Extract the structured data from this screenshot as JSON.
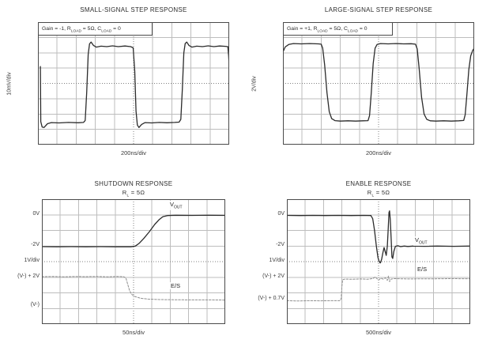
{
  "colors": {
    "trace_dark": "#2b2b2b",
    "trace_light": "#8f8f8f",
    "grid": "#bdbdbd",
    "grid_center": "#808080",
    "plot_border": "#4a4a4a",
    "text": "#333333"
  },
  "chart_data": [
    {
      "id": "small-signal-step-response",
      "type": "line",
      "title": "SMALL-SIGNAL STEP RESPONSE",
      "xlabel": "200ns/div",
      "ylabel": "10mV/div",
      "x_divisions": 10,
      "y_divisions": 8,
      "grid": true,
      "annotation": {
        "p1": "Gain = -1, R",
        "s1": "LOAD",
        "p2": " = 5Ω, C",
        "s2": "LOAD",
        "p3": " = 0"
      },
      "series": [
        {
          "name": "VOUT",
          "color_key": "trace_dark",
          "dashed": false,
          "points_div": [
            [
              0.13,
              2.9
            ],
            [
              0.15,
              6.5
            ],
            [
              0.22,
              6.85
            ],
            [
              0.32,
              6.88
            ],
            [
              0.5,
              6.63
            ],
            [
              0.7,
              6.56
            ],
            [
              1.1,
              6.58
            ],
            [
              1.6,
              6.55
            ],
            [
              2.1,
              6.57
            ],
            [
              2.38,
              6.55
            ],
            [
              2.47,
              6.42
            ],
            [
              2.55,
              4.6
            ],
            [
              2.63,
              2.1
            ],
            [
              2.7,
              1.42
            ],
            [
              2.78,
              1.3
            ],
            [
              2.9,
              1.52
            ],
            [
              3.05,
              1.63
            ],
            [
              3.3,
              1.57
            ],
            [
              3.6,
              1.6
            ],
            [
              3.9,
              1.55
            ],
            [
              4.2,
              1.6
            ],
            [
              4.55,
              1.56
            ],
            [
              4.85,
              1.6
            ],
            [
              4.98,
              1.68
            ],
            [
              5.06,
              3.2
            ],
            [
              5.13,
              5.8
            ],
            [
              5.2,
              6.72
            ],
            [
              5.28,
              6.88
            ],
            [
              5.42,
              6.68
            ],
            [
              5.6,
              6.56
            ],
            [
              5.95,
              6.58
            ],
            [
              6.35,
              6.55
            ],
            [
              6.75,
              6.57
            ],
            [
              7.15,
              6.55
            ],
            [
              7.38,
              6.53
            ],
            [
              7.47,
              6.35
            ],
            [
              7.55,
              4.4
            ],
            [
              7.63,
              2.0
            ],
            [
              7.7,
              1.4
            ],
            [
              7.78,
              1.3
            ],
            [
              7.9,
              1.53
            ],
            [
              8.05,
              1.63
            ],
            [
              8.3,
              1.57
            ],
            [
              8.6,
              1.6
            ],
            [
              8.9,
              1.55
            ],
            [
              9.2,
              1.6
            ],
            [
              9.5,
              1.56
            ],
            [
              9.8,
              1.58
            ],
            [
              9.93,
              1.6
            ],
            [
              9.97,
              2.2
            ],
            [
              9.99,
              2.7
            ]
          ]
        }
      ]
    },
    {
      "id": "large-signal-step-response",
      "type": "line",
      "title": "LARGE-SIGNAL STEP RESPONSE",
      "xlabel": "200ns/div",
      "ylabel": "2V/div",
      "x_divisions": 10,
      "y_divisions": 8,
      "grid": true,
      "annotation": {
        "p1": "Gain = +1, R",
        "s1": "LOAD",
        "p2": " = 5Ω, C",
        "s2": "LOAD",
        "p3": " = 0"
      },
      "series": [
        {
          "name": "VOUT",
          "color_key": "trace_dark",
          "dashed": false,
          "points_div": [
            [
              0,
              1.95
            ],
            [
              0.12,
              1.62
            ],
            [
              0.3,
              1.46
            ],
            [
              0.55,
              1.4
            ],
            [
              0.95,
              1.42
            ],
            [
              1.4,
              1.4
            ],
            [
              1.85,
              1.42
            ],
            [
              2.0,
              1.44
            ],
            [
              2.08,
              1.7
            ],
            [
              2.18,
              2.8
            ],
            [
              2.3,
              4.6
            ],
            [
              2.42,
              5.85
            ],
            [
              2.55,
              6.3
            ],
            [
              2.72,
              6.43
            ],
            [
              3.0,
              6.46
            ],
            [
              3.4,
              6.44
            ],
            [
              3.8,
              6.46
            ],
            [
              4.2,
              6.44
            ],
            [
              4.45,
              6.43
            ],
            [
              4.53,
              6.1
            ],
            [
              4.62,
              4.6
            ],
            [
              4.72,
              2.7
            ],
            [
              4.82,
              1.7
            ],
            [
              4.92,
              1.46
            ],
            [
              5.1,
              1.4
            ],
            [
              5.5,
              1.42
            ],
            [
              5.9,
              1.4
            ],
            [
              6.3,
              1.42
            ],
            [
              6.7,
              1.41
            ],
            [
              6.93,
              1.44
            ],
            [
              7.02,
              1.75
            ],
            [
              7.12,
              3.0
            ],
            [
              7.25,
              4.9
            ],
            [
              7.38,
              6.0
            ],
            [
              7.52,
              6.35
            ],
            [
              7.7,
              6.44
            ],
            [
              8.0,
              6.46
            ],
            [
              8.4,
              6.44
            ],
            [
              8.8,
              6.46
            ],
            [
              9.2,
              6.44
            ],
            [
              9.45,
              6.42
            ],
            [
              9.53,
              6.05
            ],
            [
              9.62,
              4.7
            ],
            [
              9.72,
              3.1
            ],
            [
              9.82,
              2.2
            ],
            [
              9.92,
              1.85
            ],
            [
              10,
              1.7
            ]
          ]
        }
      ]
    },
    {
      "id": "shutdown-response",
      "type": "line",
      "title": "SHUTDOWN RESPONSE",
      "subtitle": {
        "p1": "R",
        "s1": "L",
        "p2": " = 5Ω"
      },
      "xlabel": "50ns/div",
      "x_divisions": 10,
      "y_divisions": 8,
      "grid": true,
      "y_ticks": [
        {
          "text": "0V",
          "row": 1
        },
        {
          "text": "-2V",
          "row": 3
        },
        {
          "text": "1V/div",
          "row": 4
        },
        {
          "text": "(V-) + 2V",
          "row": 5
        },
        {
          "text": "(V-)",
          "row": 6.85
        }
      ],
      "trace_labels": {
        "vout_main": "V",
        "vout_sub": "OUT",
        "es": "E/S"
      },
      "series": [
        {
          "name": "VOUT",
          "color_key": "trace_dark",
          "dashed": false,
          "points_div": [
            [
              0,
              3.04
            ],
            [
              0.8,
              3.05
            ],
            [
              1.6,
              3.04
            ],
            [
              2.4,
              3.05
            ],
            [
              3.2,
              3.04
            ],
            [
              4.0,
              3.05
            ],
            [
              4.85,
              3.05
            ],
            [
              5.1,
              3.0
            ],
            [
              5.3,
              2.83
            ],
            [
              5.55,
              2.52
            ],
            [
              5.85,
              2.1
            ],
            [
              6.15,
              1.62
            ],
            [
              6.4,
              1.3
            ],
            [
              6.6,
              1.12
            ],
            [
              6.85,
              1.05
            ],
            [
              7.3,
              1.03
            ],
            [
              8.2,
              1.04
            ],
            [
              9.1,
              1.03
            ],
            [
              10,
              1.04
            ]
          ]
        },
        {
          "name": "E/S",
          "color_key": "trace_light",
          "dashed": true,
          "points_div": [
            [
              0,
              4.96
            ],
            [
              0.6,
              4.95
            ],
            [
              1.2,
              4.97
            ],
            [
              1.8,
              4.95
            ],
            [
              2.4,
              4.96
            ],
            [
              3.0,
              4.95
            ],
            [
              3.6,
              4.97
            ],
            [
              4.1,
              4.95
            ],
            [
              4.45,
              4.96
            ],
            [
              4.58,
              5.05
            ],
            [
              4.68,
              5.45
            ],
            [
              4.78,
              5.85
            ],
            [
              4.9,
              6.1
            ],
            [
              5.1,
              6.25
            ],
            [
              5.4,
              6.35
            ],
            [
              5.8,
              6.4
            ],
            [
              6.4,
              6.43
            ],
            [
              7.2,
              6.44
            ],
            [
              8.2,
              6.45
            ],
            [
              9.2,
              6.45
            ],
            [
              10,
              6.46
            ]
          ]
        }
      ]
    },
    {
      "id": "enable-response",
      "type": "line",
      "title": "ENABLE RESPONSE",
      "subtitle": {
        "p1": "R",
        "s1": "L",
        "p2": " = 5Ω"
      },
      "xlabel": "500ns/div",
      "x_divisions": 10,
      "y_divisions": 8,
      "grid": true,
      "y_ticks": [
        {
          "text": "0V",
          "row": 1
        },
        {
          "text": "-2V",
          "row": 3
        },
        {
          "text": "1V/div",
          "row": 4
        },
        {
          "text": "(V-) + 2V",
          "row": 5
        },
        {
          "text": "(V-) + 0.7V",
          "row": 6.45
        }
      ],
      "trace_labels": {
        "vout_main": "V",
        "vout_sub": "OUT",
        "es": "E/S"
      },
      "series": [
        {
          "name": "VOUT",
          "color_key": "trace_dark",
          "dashed": false,
          "points_div": [
            [
              0,
              1.04
            ],
            [
              0.7,
              1.05
            ],
            [
              1.4,
              1.04
            ],
            [
              2.1,
              1.05
            ],
            [
              2.8,
              1.04
            ],
            [
              3.5,
              1.05
            ],
            [
              4.2,
              1.04
            ],
            [
              4.58,
              1.05
            ],
            [
              4.68,
              1.25
            ],
            [
              4.78,
              2.0
            ],
            [
              4.88,
              3.0
            ],
            [
              4.97,
              3.75
            ],
            [
              5.04,
              4.02
            ],
            [
              5.1,
              4.08
            ],
            [
              5.17,
              3.85
            ],
            [
              5.24,
              3.4
            ],
            [
              5.3,
              3.1
            ],
            [
              5.35,
              3.3
            ],
            [
              5.42,
              3.6
            ],
            [
              5.48,
              3.0
            ],
            [
              5.53,
              1.8
            ],
            [
              5.57,
              0.85
            ],
            [
              5.6,
              0.75
            ],
            [
              5.64,
              1.3
            ],
            [
              5.69,
              2.6
            ],
            [
              5.73,
              3.7
            ],
            [
              5.77,
              3.8
            ],
            [
              5.83,
              3.35
            ],
            [
              5.92,
              3.02
            ],
            [
              6.05,
              2.98
            ],
            [
              6.2,
              3.04
            ],
            [
              6.4,
              3.0
            ],
            [
              6.6,
              3.03
            ],
            [
              6.9,
              3.0
            ],
            [
              7.5,
              3.02
            ],
            [
              8.2,
              3.0
            ],
            [
              9.1,
              3.02
            ],
            [
              10,
              3.0
            ]
          ]
        },
        {
          "name": "E/S",
          "color_key": "trace_light",
          "dashed": true,
          "points_div": [
            [
              0,
              6.5
            ],
            [
              0.6,
              6.52
            ],
            [
              1.2,
              6.5
            ],
            [
              1.8,
              6.51
            ],
            [
              2.4,
              6.5
            ],
            [
              2.9,
              6.5
            ],
            [
              2.96,
              6.35
            ],
            [
              3.0,
              5.6
            ],
            [
              3.04,
              5.16
            ],
            [
              3.15,
              5.12
            ],
            [
              3.6,
              5.13
            ],
            [
              4.0,
              5.11
            ],
            [
              4.4,
              5.13
            ],
            [
              4.7,
              5.08
            ],
            [
              4.82,
              4.98
            ],
            [
              4.92,
              5.1
            ],
            [
              5.02,
              5.16
            ],
            [
              5.12,
              5.06
            ],
            [
              5.25,
              5.12
            ],
            [
              5.38,
              5.04
            ],
            [
              5.48,
              5.2
            ],
            [
              5.54,
              4.92
            ],
            [
              5.6,
              5.28
            ],
            [
              5.68,
              5.12
            ],
            [
              5.85,
              5.09
            ],
            [
              6.2,
              5.1
            ],
            [
              6.7,
              5.11
            ],
            [
              7.3,
              5.1
            ],
            [
              8.1,
              5.1
            ],
            [
              9.0,
              5.09
            ],
            [
              10,
              5.1
            ]
          ]
        }
      ]
    }
  ]
}
